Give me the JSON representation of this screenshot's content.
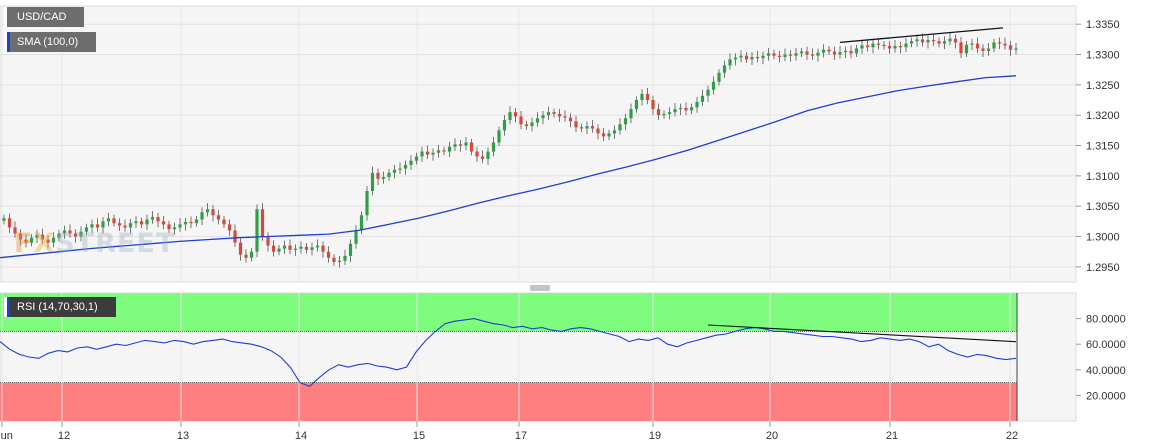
{
  "header": {
    "symbol": "USD/CAD",
    "sma_label": "SMA (100,0)",
    "rsi_label": "RSI (14,70,30,1)"
  },
  "watermark": {
    "a": "F",
    "b": "X",
    "c": "STREET"
  },
  "colors": {
    "up": "#2e9f45",
    "down": "#d9463a",
    "sma": "#1e3fd0",
    "rsi": "#1e3fd0",
    "rsi_over": "#7dfc7d",
    "rsi_under": "#fd7f7f"
  },
  "chart_data": [
    {
      "type": "candlestick",
      "title": "USD/CAD",
      "x_labels": [
        "Jun",
        "12",
        "13",
        "14",
        "15",
        "17",
        "19",
        "20",
        "21",
        "22"
      ],
      "y_ticks": [
        "1.3350",
        "1.3300",
        "1.3250",
        "1.3200",
        "1.3150",
        "1.3100",
        "1.3050",
        "1.3000",
        "1.2950"
      ],
      "ylim": [
        1.2925,
        1.338
      ],
      "grid": true,
      "series": [
        {
          "name": "SMA (100,0)",
          "values": [
            1.2965,
            1.297,
            1.2975,
            1.298,
            1.2984,
            1.2988,
            1.2992,
            1.2995,
            1.2998,
            1.3,
            1.3002,
            1.3004,
            1.301,
            1.302,
            1.303,
            1.3042,
            1.3055,
            1.3067,
            1.3078,
            1.309,
            1.3103,
            1.3115,
            1.3128,
            1.3142,
            1.3158,
            1.3174,
            1.319,
            1.3207,
            1.322,
            1.323,
            1.324,
            1.3248,
            1.3255,
            1.3262,
            1.3265
          ]
        }
      ],
      "candles_close": [
        1.303,
        1.3015,
        1.3005,
        1.2995,
        1.299,
        1.2998,
        1.3003,
        1.2995,
        1.299,
        1.2998,
        1.3005,
        1.301,
        1.3005,
        1.3,
        1.3008,
        1.3015,
        1.302,
        1.3015,
        1.3025,
        1.303,
        1.3022,
        1.3018,
        1.3015,
        1.3022,
        1.3025,
        1.302,
        1.3028,
        1.3032,
        1.3025,
        1.302,
        1.3012,
        1.3015,
        1.302,
        1.3024,
        1.3022,
        1.3028,
        1.304,
        1.3045,
        1.3035,
        1.3028,
        1.302,
        1.301,
        1.299,
        1.297,
        1.2965,
        1.2975,
        1.3045,
        1.3,
        1.2985,
        1.2975,
        1.298,
        1.2985,
        1.2978,
        1.298,
        1.2983,
        1.2978,
        1.2982,
        1.2985,
        1.2975,
        1.2965,
        1.2958,
        1.296,
        1.2968,
        1.2988,
        1.301,
        1.3035,
        1.3075,
        1.3105,
        1.3095,
        1.3098,
        1.3105,
        1.311,
        1.3112,
        1.3118,
        1.3125,
        1.3132,
        1.314,
        1.3135,
        1.3138,
        1.3142,
        1.314,
        1.3148,
        1.3152,
        1.315,
        1.3155,
        1.314,
        1.3132,
        1.3128,
        1.314,
        1.3155,
        1.3175,
        1.3192,
        1.3205,
        1.3198,
        1.3185,
        1.3182,
        1.3188,
        1.3195,
        1.32,
        1.3205,
        1.3202,
        1.3198,
        1.3196,
        1.319,
        1.318,
        1.3178,
        1.3182,
        1.3178,
        1.317,
        1.3165,
        1.317,
        1.3175,
        1.3185,
        1.3195,
        1.321,
        1.3225,
        1.3235,
        1.3225,
        1.321,
        1.32,
        1.3202,
        1.3205,
        1.321,
        1.3212,
        1.3208,
        1.3213,
        1.3222,
        1.3232,
        1.3242,
        1.3255,
        1.327,
        1.3282,
        1.3292,
        1.3295,
        1.3298,
        1.3292,
        1.3296,
        1.3294,
        1.3298,
        1.3302,
        1.3298,
        1.3296,
        1.33,
        1.3298,
        1.3302,
        1.3305,
        1.33,
        1.3298,
        1.3303,
        1.3308,
        1.3305,
        1.33,
        1.3304,
        1.3306,
        1.3302,
        1.331,
        1.3315,
        1.3312,
        1.3318,
        1.3316,
        1.3314,
        1.331,
        1.3314,
        1.3312,
        1.3318,
        1.3322,
        1.3325,
        1.332,
        1.3324,
        1.3322,
        1.3318,
        1.3322,
        1.3326,
        1.332,
        1.3302,
        1.3316,
        1.3318,
        1.331,
        1.3306,
        1.331,
        1.332,
        1.3318,
        1.3315,
        1.3308,
        1.331
      ],
      "trendline": {
        "from": 1.332,
        "to": 1.3344
      }
    },
    {
      "type": "line",
      "title": "RSI (14,70,30,1)",
      "y_ticks": [
        "80.0000",
        "60.0000",
        "40.0000",
        "20.0000"
      ],
      "ylim": [
        0,
        100
      ],
      "overbought": 70,
      "oversold": 30,
      "values": [
        62,
        56,
        52,
        50,
        49,
        53,
        55,
        54,
        57,
        58,
        56,
        58,
        60,
        59,
        61,
        63,
        62,
        61,
        63,
        62,
        60,
        62,
        63,
        64,
        62,
        61,
        60,
        58,
        55,
        50,
        42,
        30,
        27,
        34,
        40,
        44,
        42,
        44,
        45,
        43,
        42,
        40,
        42,
        54,
        63,
        70,
        76,
        78,
        79,
        80,
        78,
        76,
        75,
        73,
        74,
        72,
        73,
        71,
        70,
        72,
        73,
        72,
        70,
        68,
        66,
        62,
        64,
        63,
        65,
        60,
        58,
        61,
        63,
        65,
        67,
        68,
        70,
        72,
        73,
        72,
        70,
        70,
        69,
        68,
        67,
        66,
        66,
        65,
        64,
        62,
        63,
        65,
        64,
        63,
        64,
        62,
        58,
        60,
        55,
        52,
        50,
        52,
        51,
        49,
        48,
        49
      ],
      "trendline": {
        "from": 75,
        "to": 62
      }
    }
  ]
}
